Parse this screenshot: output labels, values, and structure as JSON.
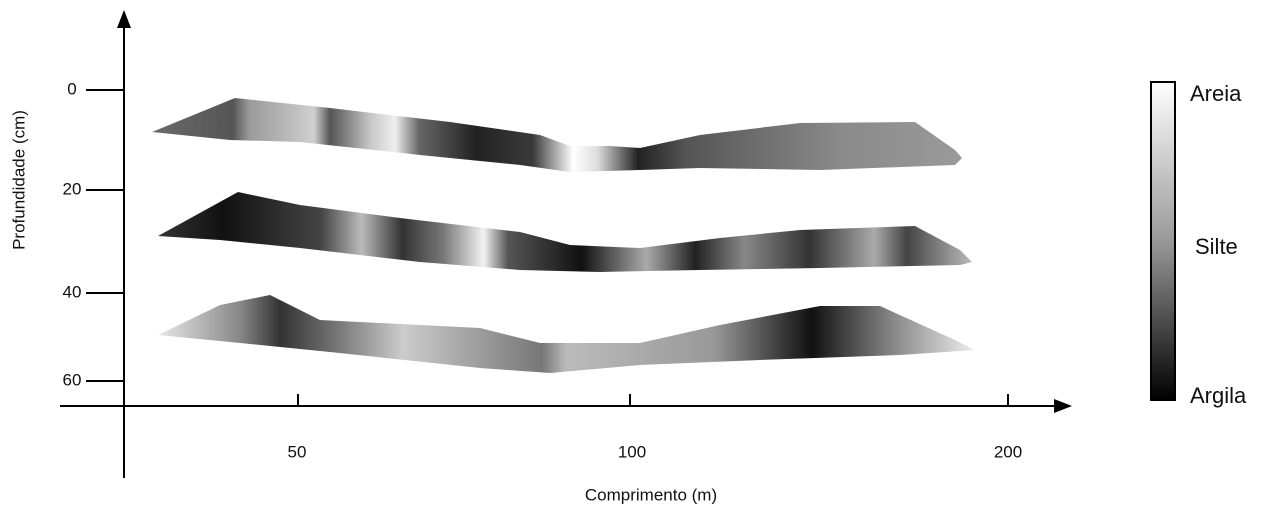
{
  "axes": {
    "x_label": "Comprimento (m)",
    "y_label": "Profundidade (cm)",
    "x_ticks": [
      "50",
      "100",
      "200"
    ],
    "y_ticks": [
      "0",
      "20",
      "40",
      "60"
    ]
  },
  "legend": {
    "labels": [
      "Areia",
      "Silte",
      "Argila"
    ]
  }
}
